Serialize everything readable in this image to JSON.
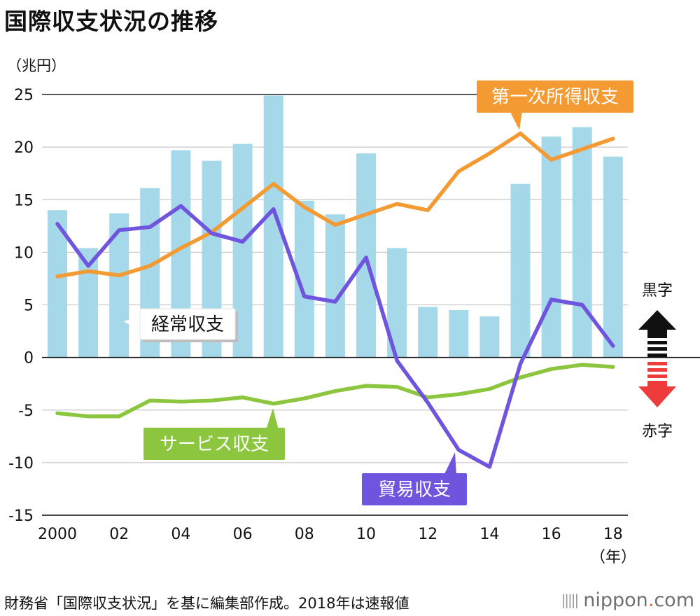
{
  "title": "国際収支状況の推移",
  "unit_label": "（兆円）",
  "source_note": "財務省「国際収支状況」を基に編集部作成。2018年は速報値",
  "brand": {
    "prefix": "nippon",
    "dot": ".",
    "suffix": "com",
    "mark": "|||||"
  },
  "colors": {
    "current_account": "#a5d8e8",
    "primary_income": "#f39a33",
    "trade": "#6f55de",
    "services": "#8cc63f",
    "surplus_arrow": "#111111",
    "deficit_arrow": "#ee3b3b"
  },
  "legend_side": {
    "surplus": "黒字",
    "deficit": "赤字"
  },
  "chart_data": {
    "type": "bar",
    "title": "国際収支状況の推移",
    "xlabel": "（年）",
    "ylabel": "（兆円）",
    "ylim": [
      -15,
      25
    ],
    "yticks": [
      25,
      20,
      15,
      10,
      5,
      0,
      -5,
      -10,
      -15
    ],
    "years": [
      2000,
      2001,
      2002,
      2003,
      2004,
      2005,
      2006,
      2007,
      2008,
      2009,
      2010,
      2011,
      2012,
      2013,
      2014,
      2015,
      2016,
      2017,
      2018
    ],
    "xtick_labels": [
      "2000",
      "02",
      "04",
      "06",
      "08",
      "10",
      "12",
      "14",
      "16",
      "18"
    ],
    "xtick_years": [
      2000,
      2002,
      2004,
      2006,
      2008,
      2010,
      2012,
      2014,
      2016,
      2018
    ],
    "grid": true,
    "series": [
      {
        "name": "経常収支",
        "type": "bar",
        "color": "#a5d8e8",
        "values": [
          14.0,
          10.4,
          13.7,
          16.1,
          19.7,
          18.7,
          20.3,
          24.9,
          14.9,
          13.6,
          19.4,
          10.4,
          4.8,
          4.5,
          3.9,
          16.5,
          21.0,
          21.9,
          19.1
        ]
      },
      {
        "name": "第一次所得収支",
        "type": "line",
        "color": "#f39a33",
        "values": [
          7.7,
          8.2,
          7.8,
          8.7,
          10.4,
          11.9,
          14.2,
          16.5,
          14.3,
          12.6,
          13.6,
          14.6,
          14.0,
          17.7,
          19.4,
          21.3,
          18.8,
          19.8,
          20.8
        ]
      },
      {
        "name": "貿易収支",
        "type": "line",
        "color": "#6f55de",
        "values": [
          12.7,
          8.7,
          12.1,
          12.4,
          14.4,
          11.8,
          11.0,
          14.1,
          5.8,
          5.3,
          9.5,
          -0.3,
          -4.3,
          -8.8,
          -10.4,
          -0.6,
          5.5,
          5.0,
          1.1
        ]
      },
      {
        "name": "サービス収支",
        "type": "line",
        "color": "#8cc63f",
        "values": [
          -5.3,
          -5.6,
          -5.6,
          -4.1,
          -4.2,
          -4.1,
          -3.8,
          -4.4,
          -3.9,
          -3.2,
          -2.7,
          -2.8,
          -3.8,
          -3.5,
          -3.0,
          -1.9,
          -1.1,
          -0.7,
          -0.9
        ]
      }
    ],
    "annotations": {
      "current_account": "経常収支",
      "primary_income": "第一次所得収支",
      "trade": "貿易収支",
      "services": "サービス収支"
    }
  }
}
